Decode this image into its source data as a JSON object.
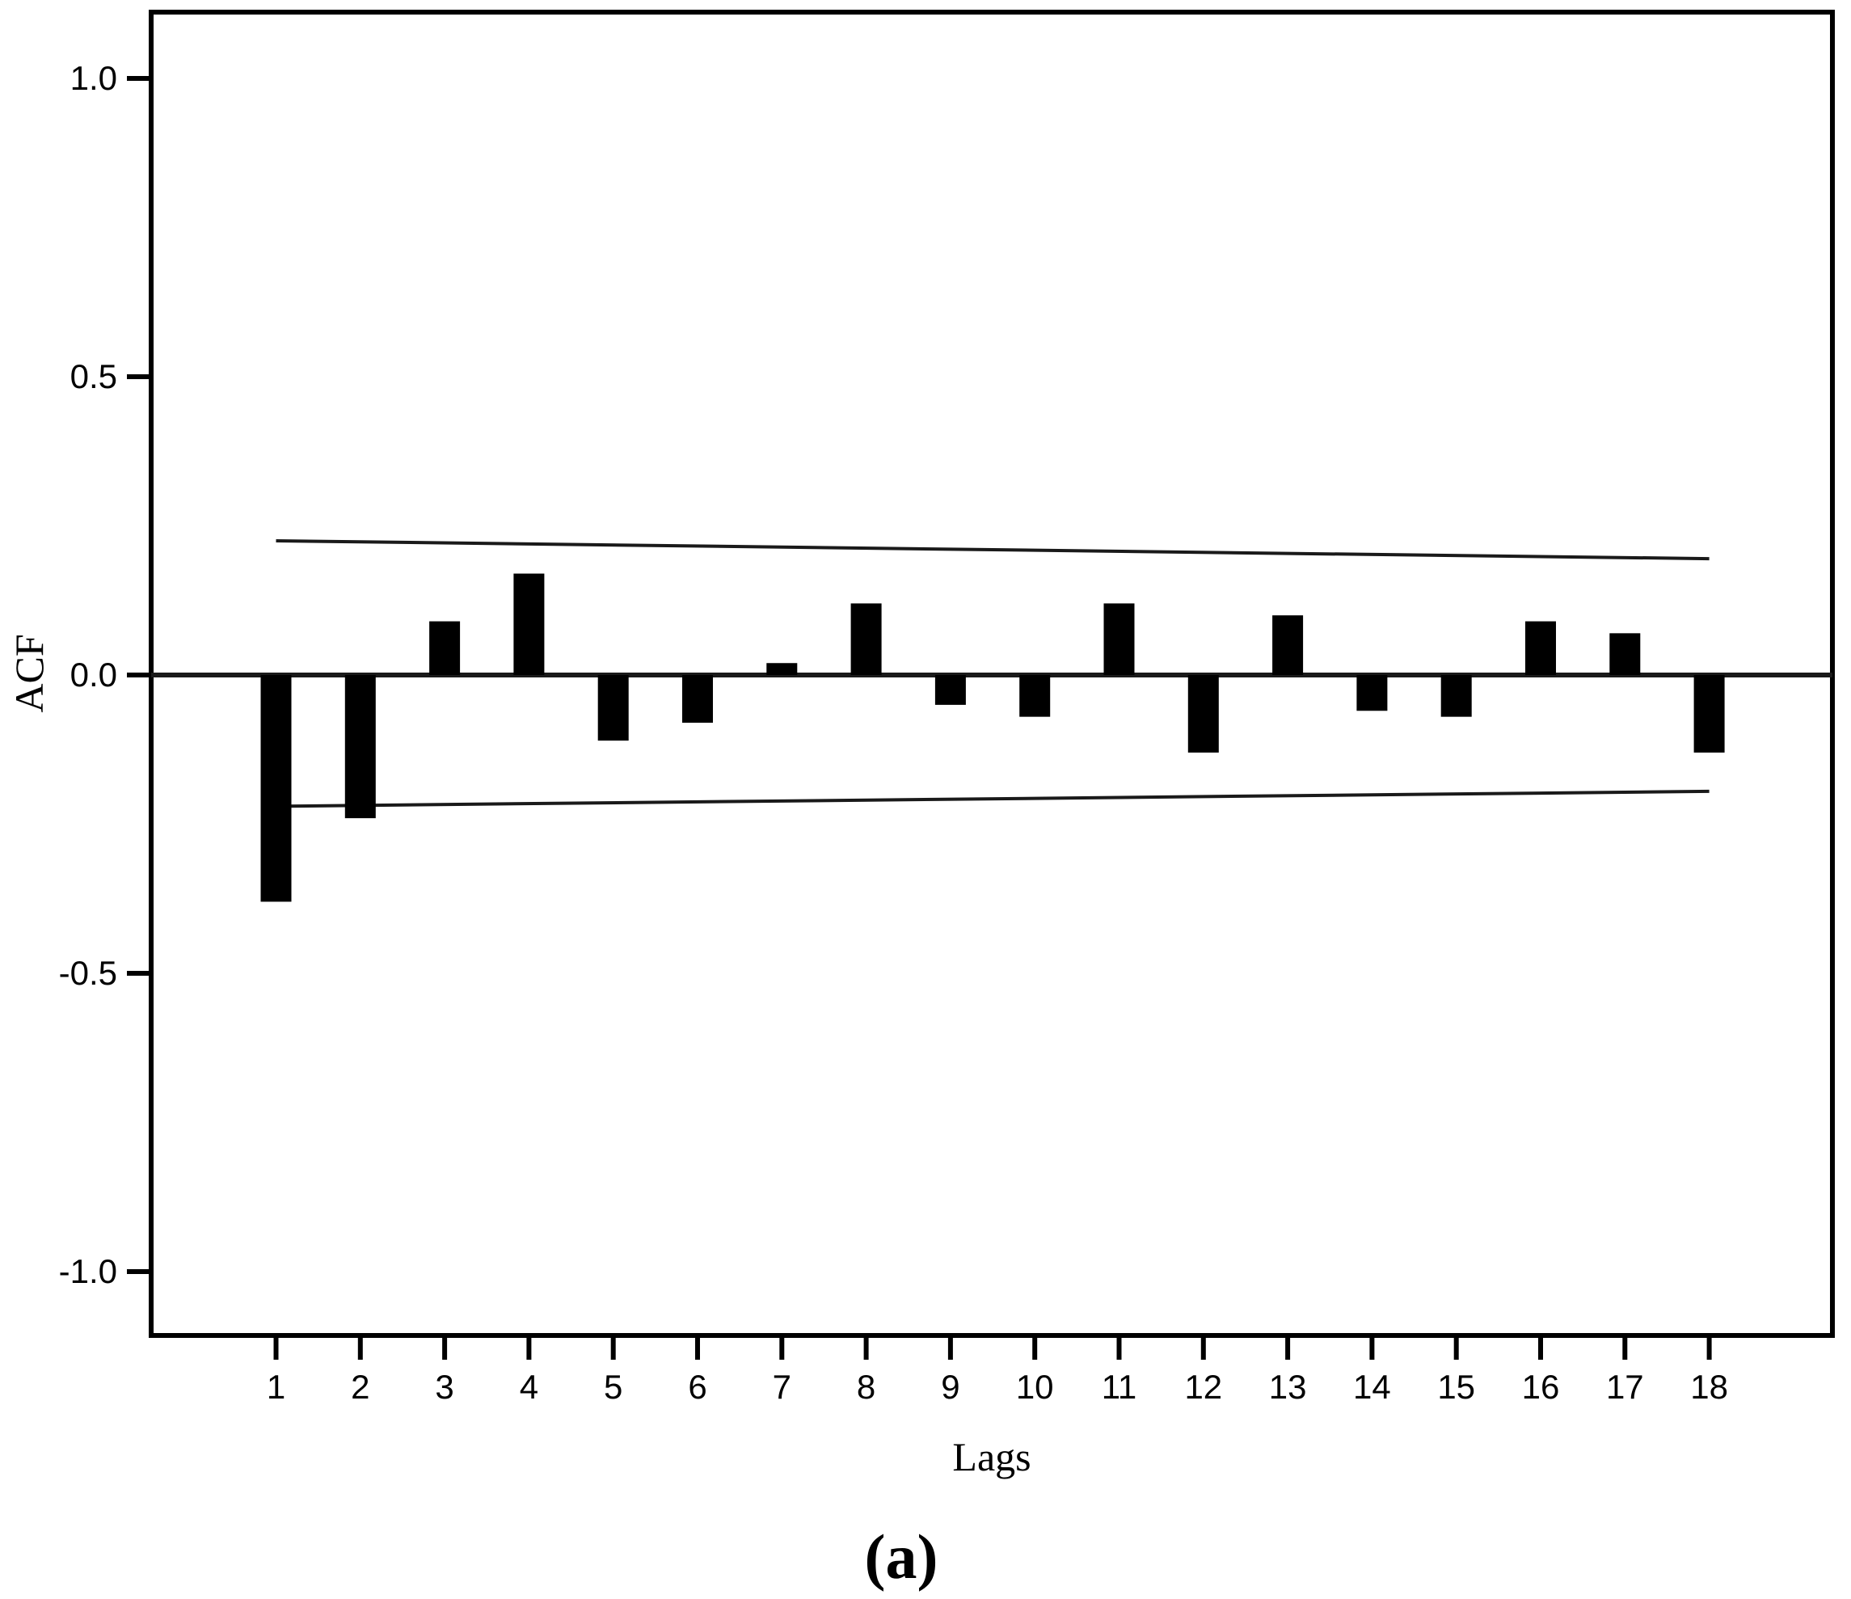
{
  "chart_data": {
    "type": "bar",
    "title": "",
    "xlabel": "Lags",
    "ylabel": "ACF",
    "caption": "(a)",
    "categories": [
      1,
      2,
      3,
      4,
      5,
      6,
      7,
      8,
      9,
      10,
      11,
      12,
      13,
      14,
      15,
      16,
      17,
      18
    ],
    "values": [
      -0.38,
      -0.24,
      0.09,
      0.17,
      -0.11,
      -0.08,
      0.02,
      0.12,
      -0.05,
      -0.07,
      0.12,
      -0.13,
      0.1,
      -0.06,
      -0.07,
      0.09,
      0.07,
      -0.13
    ],
    "x_tick_labels": [
      "1",
      "2",
      "3",
      "4",
      "5",
      "6",
      "7",
      "8",
      "9",
      "10",
      "11",
      "12",
      "13",
      "14",
      "15",
      "16",
      "17",
      "18"
    ],
    "y_ticks": [
      {
        "value": 1.0,
        "label": "1.0"
      },
      {
        "value": 0.5,
        "label": "0.5"
      },
      {
        "value": 0.0,
        "label": "0.0"
      },
      {
        "value": -0.5,
        "label": "-0.5"
      },
      {
        "value": -1.0,
        "label": "-1.0"
      }
    ],
    "ylim": [
      -1.11,
      1.11
    ],
    "grid": false,
    "legend": "none",
    "confidence_bounds": {
      "upper_start": 0.225,
      "upper_end": 0.195,
      "lower_start": -0.22,
      "lower_end": -0.195
    },
    "bar_color": "#000000",
    "axis_color": "#000000",
    "line_color": "#1a1a1a"
  }
}
